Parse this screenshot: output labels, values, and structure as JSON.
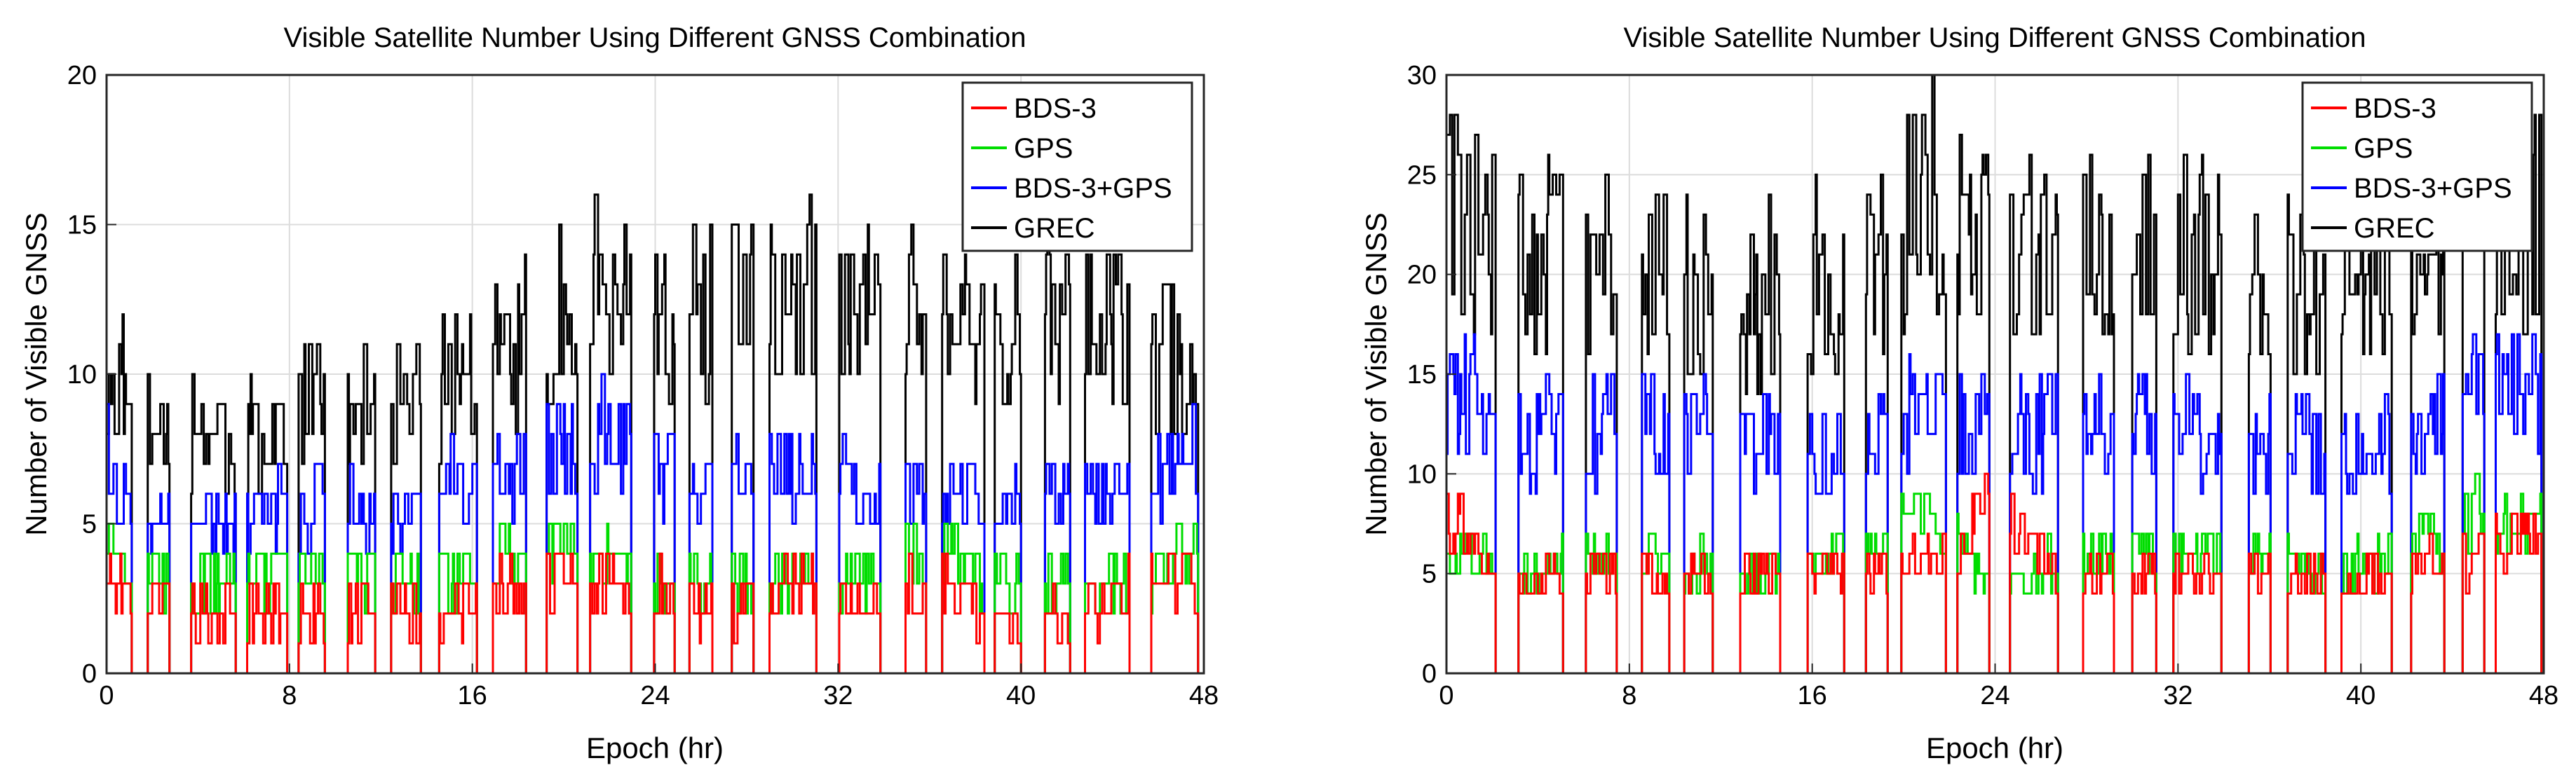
{
  "chart_data": [
    {
      "type": "line",
      "title": "Visible Satellite Number Using Different GNSS Combination",
      "xlabel": "Epoch (hr)",
      "ylabel": "Number of Visible GNSS",
      "xlim": [
        0,
        48
      ],
      "ylim": [
        0,
        20
      ],
      "xticks": [
        0,
        8,
        16,
        24,
        32,
        40,
        48
      ],
      "yticks": [
        0,
        5,
        10,
        15,
        20
      ],
      "grid": true,
      "legend_position": "top-right",
      "dwell_hours": 1.4,
      "x": [
        0.0,
        3.0,
        6.0,
        9.0,
        12.0,
        15.0,
        18.0,
        21.0,
        24.0,
        27.0,
        30.0,
        33.0,
        36.0,
        39.0,
        42.0,
        45.0,
        48.0
      ],
      "series": [
        {
          "name": "BDS-3",
          "color": "#ff0000",
          "values": [
            3,
            2,
            2,
            2,
            2,
            2,
            3,
            3,
            3,
            2,
            3,
            2,
            3,
            2,
            2,
            3,
            3
          ]
        },
        {
          "name": "GPS",
          "color": "#00dd00",
          "values": [
            4,
            3,
            3,
            4,
            3,
            3,
            4,
            4,
            3,
            3,
            3,
            3,
            4,
            3,
            3,
            3,
            4
          ]
        },
        {
          "name": "BDS-3+GPS",
          "color": "#0000ff",
          "values": [
            7,
            5,
            5,
            6,
            5,
            6,
            7,
            8,
            7,
            6,
            7,
            6,
            6,
            6,
            6,
            6,
            7
          ]
        },
        {
          "name": "GREC",
          "color": "#000000",
          "values": [
            10,
            8,
            8,
            9,
            9,
            10,
            11,
            13,
            12,
            12,
            13,
            12,
            12,
            11,
            12,
            11,
            10
          ]
        }
      ]
    },
    {
      "type": "line",
      "title": "Visible Satellite Number Using Different GNSS Combination",
      "xlabel": "Epoch (hr)",
      "ylabel": "Number of Visible GNSS",
      "xlim": [
        0,
        48
      ],
      "ylim": [
        0,
        30
      ],
      "xticks": [
        0,
        8,
        16,
        24,
        32,
        40,
        48
      ],
      "yticks": [
        0,
        5,
        10,
        15,
        20,
        25,
        30
      ],
      "grid": true,
      "legend_position": "top-right",
      "dwell_hours": 1.5,
      "x": [
        0.0,
        3.0,
        6.0,
        9.0,
        12.0,
        15.0,
        18.0,
        21.0,
        24.0,
        27.0,
        30.0,
        33.0,
        36.0,
        39.0,
        42.0,
        45.0,
        48.0
      ],
      "series": [
        {
          "name": "BDS-3",
          "color": "#ff0000",
          "values": [
            8,
            5,
            5,
            5,
            5,
            5,
            5,
            6,
            8,
            5,
            5,
            5,
            5,
            5,
            5,
            6,
            7
          ]
        },
        {
          "name": "GPS",
          "color": "#00dd00",
          "values": [
            6,
            5,
            6,
            6,
            5,
            5,
            6,
            8,
            4,
            6,
            6,
            6,
            6,
            5,
            6,
            8,
            7
          ]
        },
        {
          "name": "BDS-3+GPS",
          "color": "#0000ff",
          "values": [
            15,
            12,
            12,
            13,
            12,
            11,
            11,
            14,
            12,
            12,
            12,
            12,
            12,
            11,
            12,
            14,
            14
          ]
        },
        {
          "name": "GREC",
          "color": "#000000",
          "values": [
            23,
            21,
            21,
            20,
            18,
            20,
            20,
            24,
            22,
            22,
            22,
            21,
            20,
            19,
            21,
            22,
            23
          ]
        }
      ]
    }
  ]
}
